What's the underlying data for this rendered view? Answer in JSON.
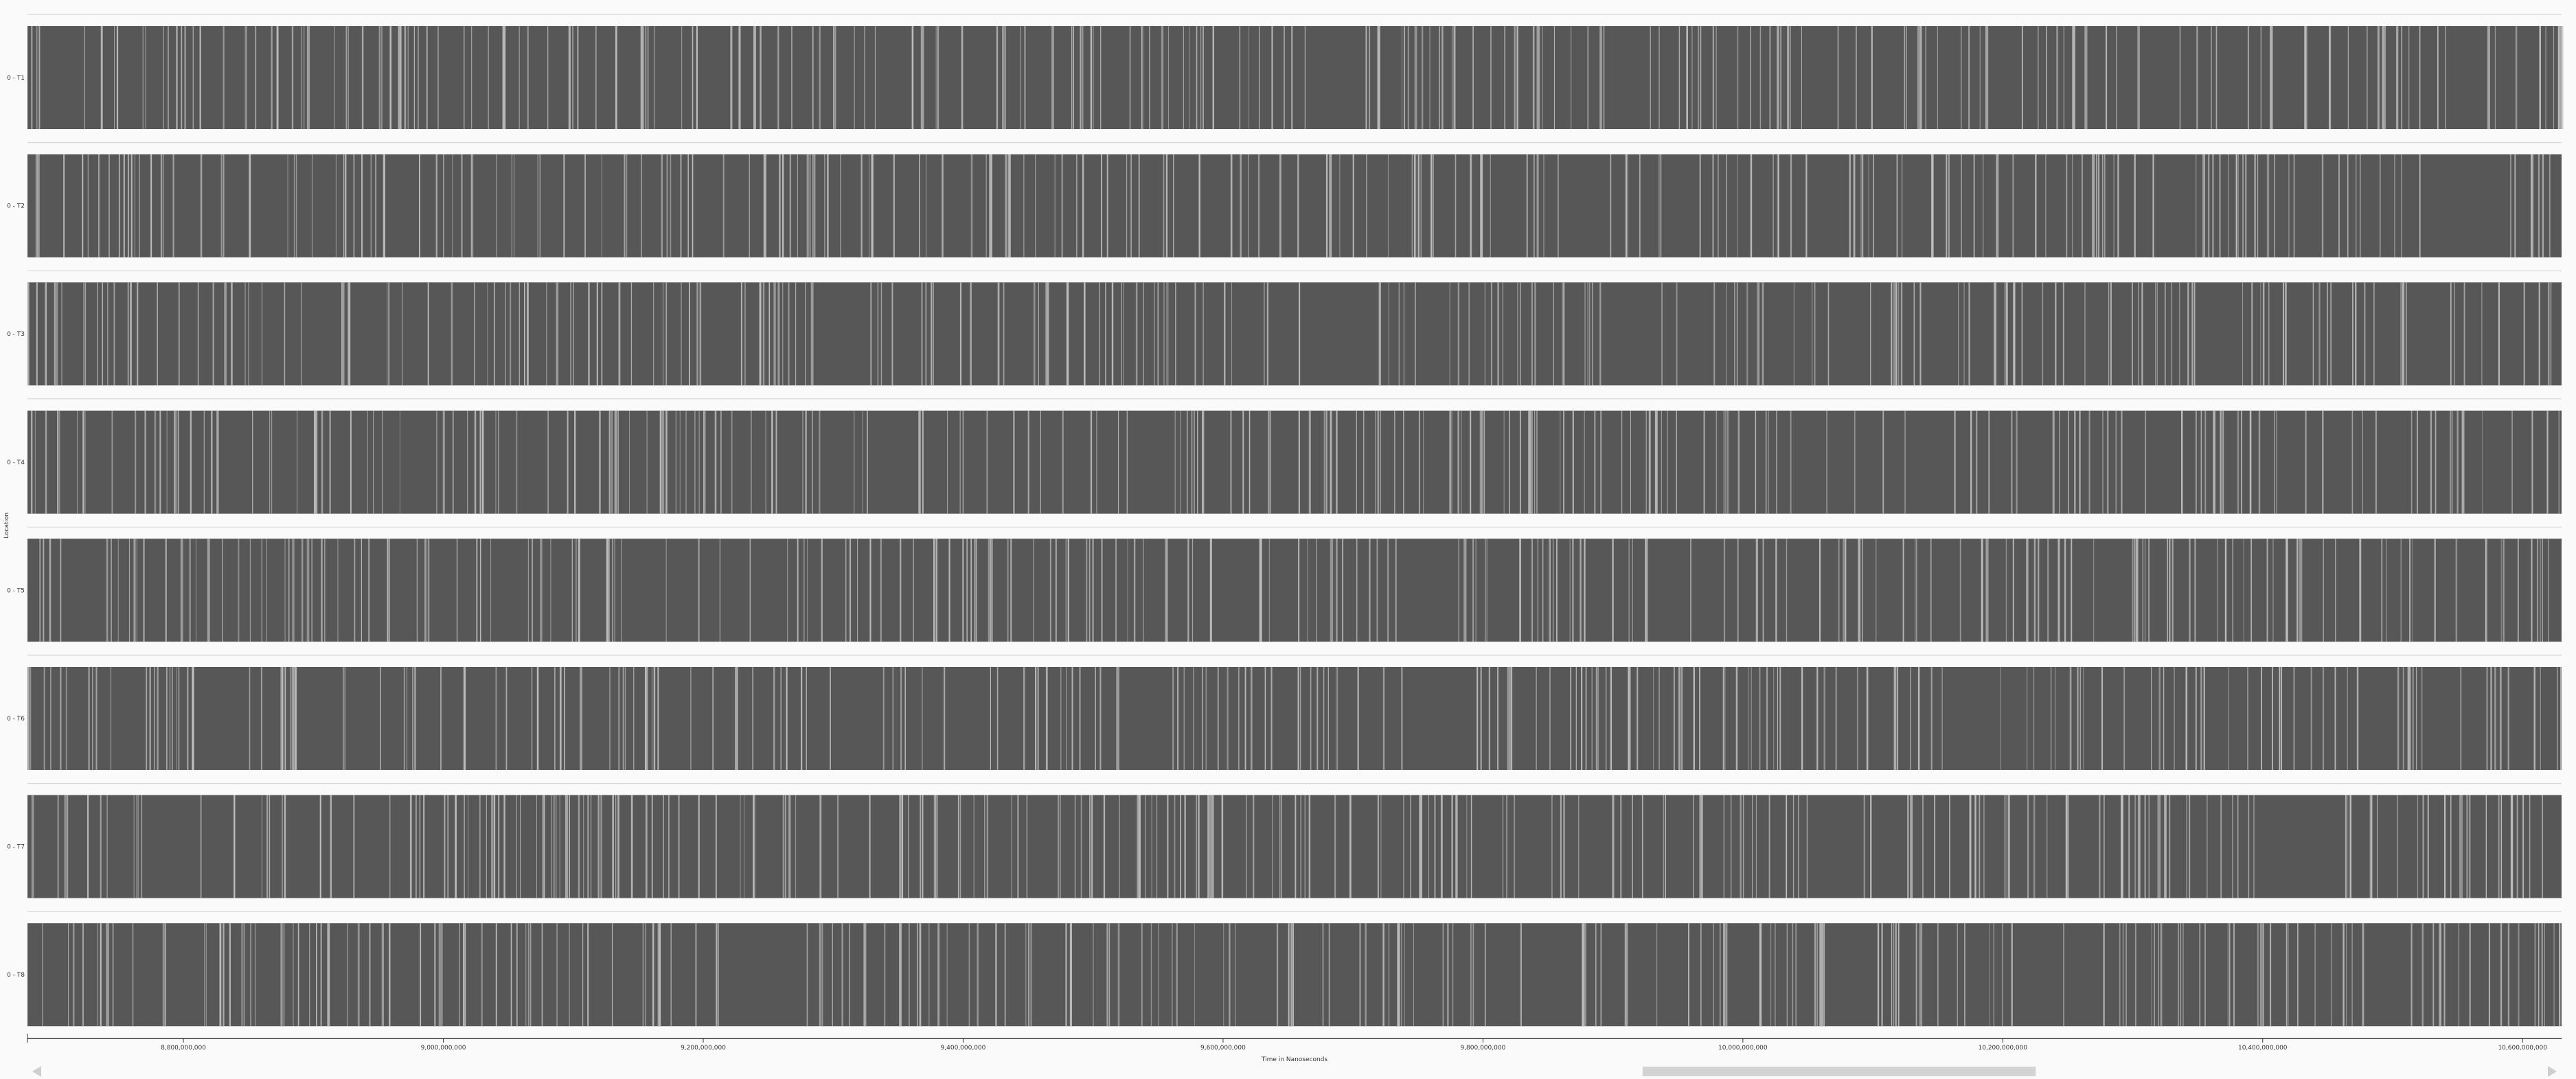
{
  "chart_data": {
    "type": "timeline",
    "xlabel": "Time in Nanoseconds",
    "ylabel": "Location",
    "x_range": [
      8680000000,
      10630000000
    ],
    "x_ticks": [
      {
        "value": 8800000000,
        "label": "8,800,000,000"
      },
      {
        "value": 9000000000,
        "label": "9,000,000,000"
      },
      {
        "value": 9200000000,
        "label": "9,200,000,000"
      },
      {
        "value": 9400000000,
        "label": "9,400,000,000"
      },
      {
        "value": 9600000000,
        "label": "9,600,000,000"
      },
      {
        "value": 9800000000,
        "label": "9,800,000,000"
      },
      {
        "value": 10000000000,
        "label": "10,000,000,000"
      },
      {
        "value": 10200000000,
        "label": "10,200,000,000"
      },
      {
        "value": 10400000000,
        "label": "10,400,000,000"
      },
      {
        "value": 10600000000,
        "label": "10,600,000,000"
      }
    ],
    "rows": [
      {
        "label": "0 - T1",
        "gaps": 230
      },
      {
        "label": "0 - T2",
        "gaps": 230
      },
      {
        "label": "0 - T3",
        "gaps": 230
      },
      {
        "label": "0 - T4",
        "gaps": 230
      },
      {
        "label": "0 - T5",
        "gaps": 230
      },
      {
        "label": "0 - T6",
        "gaps": 230
      },
      {
        "label": "0 - T7",
        "gaps": 260
      },
      {
        "label": "0 - T8",
        "gaps": 230
      }
    ],
    "colors": {
      "bar": "#575757",
      "gap": "#bdbdbd",
      "background": "#fafafa",
      "separator": "#cfcfcf",
      "axis": "#333333",
      "text": "#333333"
    },
    "scrollbar": {
      "position": 0.758,
      "visible_fraction": 0.157
    },
    "scroll_left_icon": "triangle-left-icon",
    "scroll_right_icon": "triangle-right-icon"
  }
}
